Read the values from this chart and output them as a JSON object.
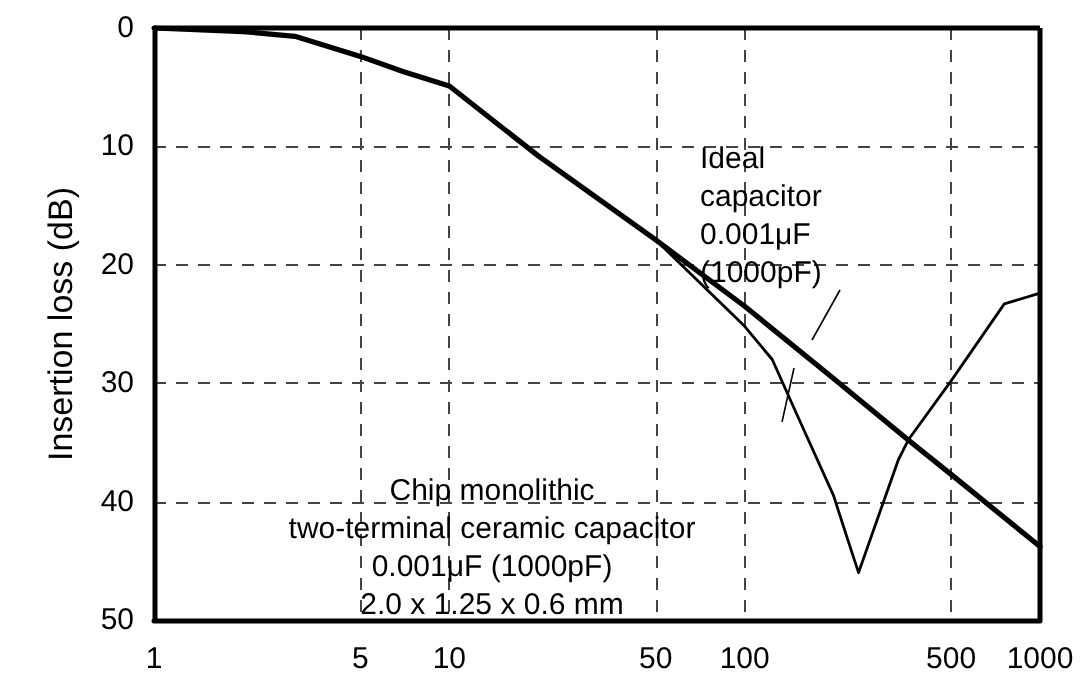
{
  "chart_data": {
    "type": "line",
    "ylabel": "Insertion loss (dB)",
    "x": [
      1,
      2,
      3,
      5,
      7,
      10,
      20,
      50,
      100,
      200,
      358,
      500,
      1000
    ],
    "series": [
      {
        "color": "#000000",
        "values": [
          0,
          0.3,
          0.7,
          2.4,
          3.7,
          4.9,
          10.8,
          17.9,
          23.5,
          29.6,
          34.8,
          37.7,
          43.8
        ]
      },
      {
        "color": "#000000",
        "x": [
          1,
          2,
          3,
          5,
          7,
          10,
          20,
          50,
          100,
          124,
          150,
          200,
          220,
          243,
          331,
          358,
          500,
          757,
          1000
        ],
        "values": [
          0,
          0.3,
          0.7,
          2.4,
          3.7,
          4.9,
          10.8,
          17.9,
          25.2,
          28,
          32.6,
          39.5,
          42.7,
          46,
          36.5,
          34.8,
          29.8,
          23.3,
          22.4
        ]
      }
    ],
    "xlim": [
      1,
      1000
    ],
    "xticks": [
      1,
      5,
      10,
      50,
      100,
      500,
      1000
    ],
    "log": "x",
    "ylim": [
      50,
      0
    ],
    "yticks": [
      0,
      10,
      20,
      30,
      40,
      50
    ],
    "grid": true,
    "marker": "none",
    "line_style": "solid",
    "annotations": [
      "Ideal\ncapacitor\n0.001μF\n(1000pF)",
      "Chip monolithic\ntwo-terminal ceramic capacitor\n0.001μF (1000pF)\n2.0 x 1.25 x 0.6 mm"
    ]
  }
}
